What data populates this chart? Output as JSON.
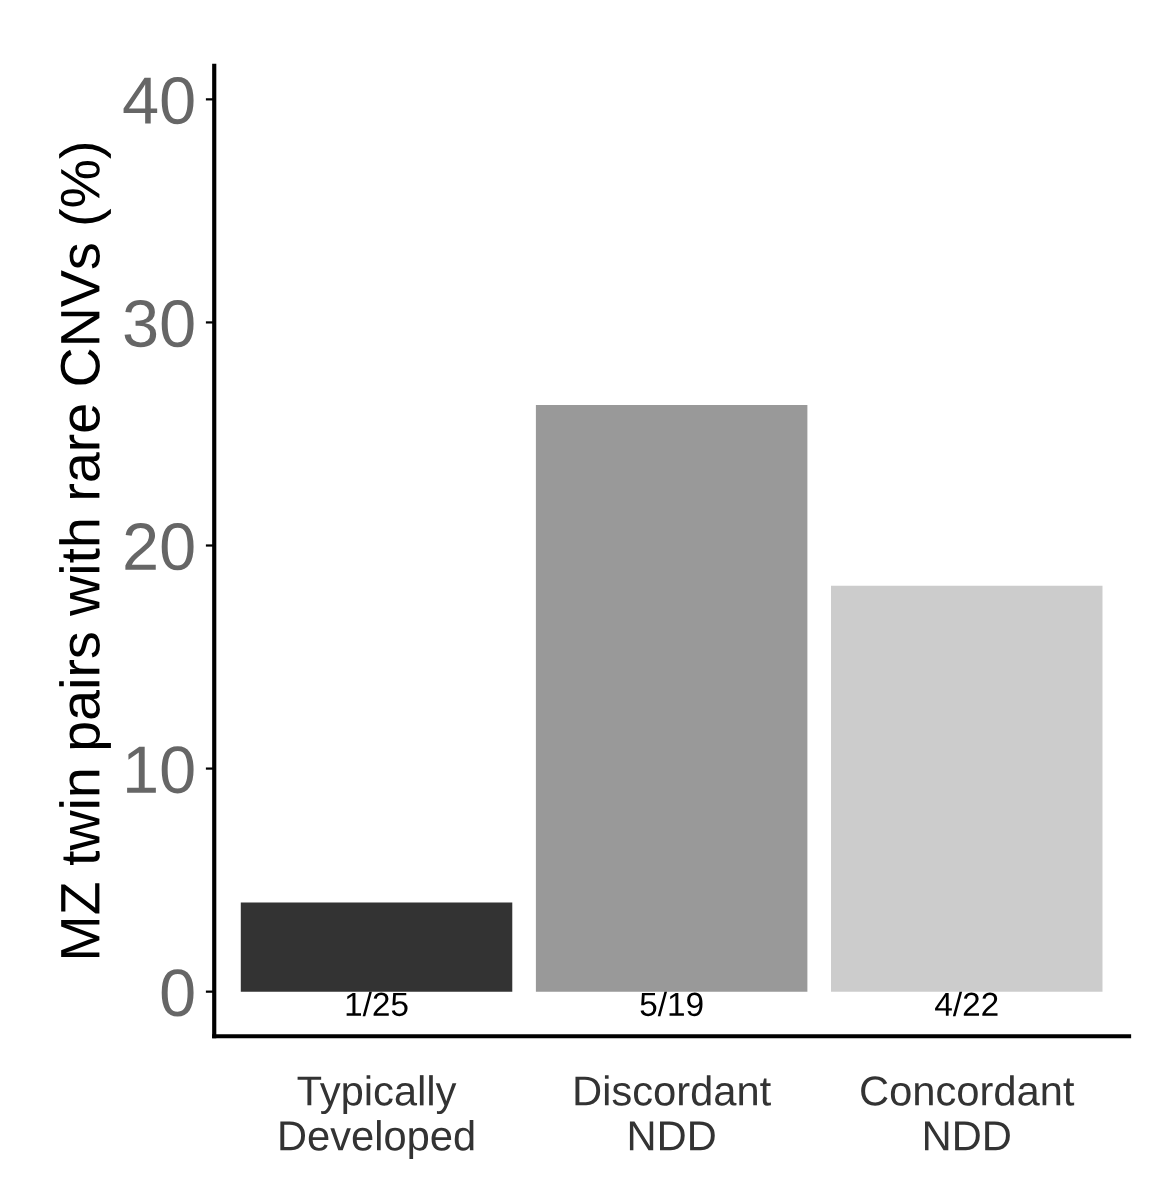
{
  "chart_data": {
    "type": "bar",
    "ylabel": "MZ twin pairs with rare CNVs (%)",
    "categories": [
      "Typically\nDeveloped",
      "Discordant\nNDD",
      "Concordant\nNDD"
    ],
    "values": [
      4,
      26.3,
      18.2
    ],
    "colors": [
      "#333333",
      "#999999",
      "#cccccc"
    ],
    "value_labels": [
      "1/25",
      "5/19",
      "4/22"
    ],
    "ylim": [
      -2,
      41.5
    ],
    "yticks": [
      0,
      10,
      20,
      30,
      40
    ],
    "grid": false
  }
}
